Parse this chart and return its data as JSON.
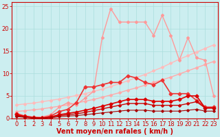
{
  "xlabel": "Vent moyen/en rafales ( km/h )",
  "xlim": [
    -0.5,
    23.5
  ],
  "ylim": [
    0,
    26
  ],
  "xticks": [
    0,
    1,
    2,
    3,
    4,
    5,
    6,
    7,
    8,
    9,
    10,
    11,
    12,
    13,
    14,
    15,
    16,
    17,
    18,
    19,
    20,
    21,
    22,
    23
  ],
  "yticks": [
    0,
    5,
    10,
    15,
    20,
    25
  ],
  "background_color": "#cceef0",
  "grid_color": "#aadddd",
  "lines": [
    {
      "x": [
        0,
        1,
        2,
        3,
        4,
        5,
        6,
        7,
        8,
        9,
        10,
        11,
        12,
        13,
        14,
        15,
        16,
        17,
        18,
        19,
        20,
        21,
        22,
        23
      ],
      "y": [
        3.0,
        3.2,
        3.4,
        3.7,
        4.0,
        4.3,
        4.7,
        5.1,
        5.5,
        6.0,
        6.5,
        7.1,
        7.7,
        8.4,
        9.1,
        9.8,
        10.6,
        11.4,
        12.3,
        13.2,
        14.0,
        14.8,
        15.6,
        16.4
      ],
      "color": "#ffbbbb",
      "linewidth": 1.0,
      "marker": "D",
      "markersize": 2.0
    },
    {
      "x": [
        0,
        1,
        2,
        3,
        4,
        5,
        6,
        7,
        8,
        9,
        10,
        11,
        12,
        13,
        14,
        15,
        16,
        17,
        18,
        19,
        20,
        21,
        22,
        23
      ],
      "y": [
        1.5,
        1.7,
        1.9,
        2.1,
        2.4,
        2.7,
        3.0,
        3.4,
        3.8,
        4.2,
        4.7,
        5.2,
        5.7,
        6.3,
        6.8,
        7.4,
        8.0,
        8.6,
        9.2,
        9.9,
        10.6,
        11.3,
        12.0,
        12.7
      ],
      "color": "#ffaaaa",
      "linewidth": 1.0,
      "marker": "D",
      "markersize": 2.0
    },
    {
      "x": [
        0,
        1,
        2,
        3,
        4,
        5,
        6,
        7,
        8,
        9,
        10,
        11,
        12,
        13,
        14,
        15,
        16,
        17,
        18,
        19,
        20,
        21,
        22,
        23
      ],
      "y": [
        1.2,
        0.5,
        0.3,
        0.3,
        0.8,
        2.5,
        3.5,
        3.0,
        4.5,
        6.0,
        18.0,
        24.5,
        21.5,
        21.5,
        21.5,
        21.5,
        18.5,
        23.0,
        18.5,
        13.0,
        18.0,
        13.5,
        13.0,
        5.0
      ],
      "color": "#ff9999",
      "linewidth": 1.0,
      "marker": "D",
      "markersize": 2.0
    },
    {
      "x": [
        0,
        1,
        2,
        3,
        4,
        5,
        6,
        7,
        8,
        9,
        10,
        11,
        12,
        13,
        14,
        15,
        16,
        17,
        18,
        19,
        20,
        21,
        22,
        23
      ],
      "y": [
        1.0,
        0.5,
        0.2,
        0.1,
        0.5,
        1.5,
        2.0,
        3.5,
        7.0,
        7.0,
        7.5,
        8.0,
        8.0,
        9.5,
        9.0,
        8.0,
        7.5,
        8.5,
        5.5,
        5.5,
        5.5,
        4.0,
        2.5,
        2.5
      ],
      "color": "#ee3333",
      "linewidth": 1.2,
      "marker": "D",
      "markersize": 2.5
    },
    {
      "x": [
        0,
        1,
        2,
        3,
        4,
        5,
        6,
        7,
        8,
        9,
        10,
        11,
        12,
        13,
        14,
        15,
        16,
        17,
        18,
        19,
        20,
        21,
        22,
        23
      ],
      "y": [
        0.8,
        0.4,
        0.1,
        0.1,
        0.3,
        0.8,
        1.1,
        1.4,
        1.8,
        2.2,
        2.7,
        3.2,
        3.7,
        4.2,
        4.2,
        4.2,
        3.8,
        3.8,
        3.8,
        4.2,
        5.0,
        5.0,
        2.3,
        2.3
      ],
      "color": "#dd0000",
      "linewidth": 1.2,
      "marker": "D",
      "markersize": 2.5
    },
    {
      "x": [
        0,
        1,
        2,
        3,
        4,
        5,
        6,
        7,
        8,
        9,
        10,
        11,
        12,
        13,
        14,
        15,
        16,
        17,
        18,
        19,
        20,
        21,
        22,
        23
      ],
      "y": [
        0.6,
        0.3,
        0.1,
        0.05,
        0.2,
        0.6,
        0.8,
        1.0,
        1.3,
        1.7,
        2.1,
        2.5,
        2.9,
        3.3,
        3.3,
        3.3,
        2.9,
        2.9,
        2.9,
        2.9,
        3.3,
        3.7,
        2.3,
        2.3
      ],
      "color": "#cc0000",
      "linewidth": 1.0,
      "marker": "D",
      "markersize": 2.0
    },
    {
      "x": [
        0,
        1,
        2,
        3,
        4,
        5,
        6,
        7,
        8,
        9,
        10,
        11,
        12,
        13,
        14,
        15,
        16,
        17,
        18,
        19,
        20,
        21,
        22,
        23
      ],
      "y": [
        0.4,
        0.2,
        0.05,
        0.02,
        0.1,
        0.35,
        0.5,
        0.6,
        0.8,
        1.0,
        1.2,
        1.4,
        1.6,
        1.8,
        1.8,
        1.8,
        1.6,
        1.6,
        1.6,
        1.6,
        1.8,
        2.0,
        1.6,
        1.6
      ],
      "color": "#aa0000",
      "linewidth": 0.8,
      "marker": "D",
      "markersize": 1.8
    }
  ],
  "xlabel_color": "#cc0000",
  "xlabel_fontsize": 7,
  "tick_fontsize": 6,
  "tick_color": "#cc0000",
  "axis_color": "#cc0000"
}
